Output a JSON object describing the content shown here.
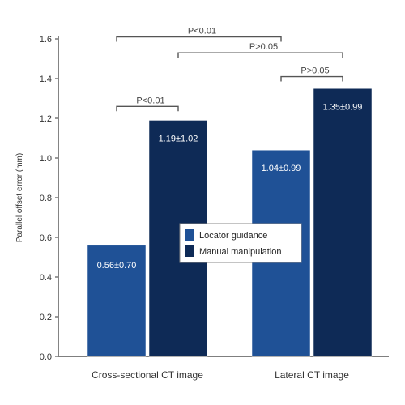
{
  "chart_data": {
    "type": "bar",
    "ylabel": "Parallel offset error (mm)",
    "ylim": [
      0,
      1.6
    ],
    "yticks": [
      "0.0",
      "0.2",
      "0.4",
      "0.6",
      "0.8",
      "1.0",
      "1.2",
      "1.4",
      "1.6"
    ],
    "categories": [
      "Cross-sectional CT image",
      "Lateral CT image"
    ],
    "series": [
      {
        "name": "Locator guidance",
        "values": [
          0.56,
          1.04
        ],
        "labels": [
          "0.56±0.70",
          "1.04±0.99"
        ],
        "color": "#1f5196"
      },
      {
        "name": "Manual manipulation",
        "values": [
          1.19,
          1.35
        ],
        "labels": [
          "1.19±1.02",
          "1.35±0.99"
        ],
        "color": "#0e2a56"
      }
    ],
    "significance": [
      {
        "text": "P<0.01",
        "from": [
          0,
          0
        ],
        "to": [
          1,
          0
        ],
        "y": 1.61
      },
      {
        "text": "P>0.05",
        "from": [
          0,
          1
        ],
        "to": [
          1,
          1
        ],
        "y": 1.53
      },
      {
        "text": "P<0.01",
        "from": [
          0,
          0
        ],
        "to": [
          0,
          1
        ],
        "y": 1.26
      },
      {
        "text": "P>0.05",
        "from": [
          1,
          0
        ],
        "to": [
          1,
          1
        ],
        "y": 1.41
      }
    ],
    "legend_position": "center"
  }
}
